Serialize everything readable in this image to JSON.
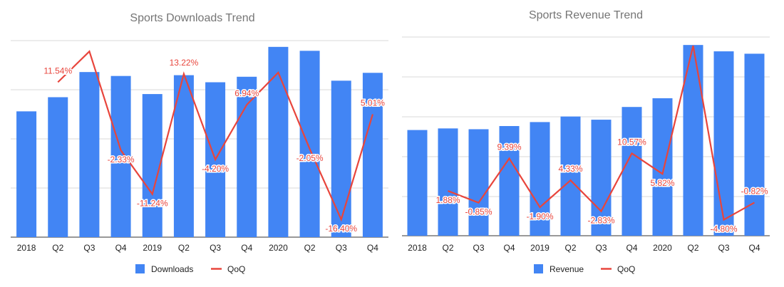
{
  "chart_data": [
    {
      "type": "bar",
      "title": "Sports Downloads Trend",
      "categories": [
        "2018",
        "Q2",
        "Q3",
        "Q4",
        "2019",
        "Q2",
        "Q3",
        "Q4",
        "2020",
        "Q2",
        "Q3",
        "Q4"
      ],
      "series": [
        {
          "name": "Downloads",
          "kind": "bar",
          "color": "#4285f4",
          "values": [
            160,
            178,
            210,
            205,
            182,
            206,
            197,
            204,
            242,
            237,
            199,
            209
          ]
        },
        {
          "name": "QoQ",
          "kind": "line",
          "color": "#e8453c",
          "values": [
            null,
            11.54,
            17.8,
            -2.33,
            -11.24,
            13.22,
            -4.2,
            6.94,
            13.5,
            -2.05,
            -16.4,
            5.01
          ],
          "labels": [
            "",
            "11.54%",
            "",
            "-2.33%",
            "-11.24%",
            "13.22%",
            "-4.20%",
            "6.94%",
            "",
            "-2.05%",
            "-16.40%",
            "5.01%"
          ]
        }
      ],
      "legend_position": "bottom",
      "grid": true
    },
    {
      "type": "bar",
      "title": "Sports Revenue Trend",
      "categories": [
        "2018",
        "Q2",
        "Q3",
        "Q4",
        "2019",
        "Q2",
        "Q3",
        "Q4",
        "2020",
        "Q2",
        "Q3",
        "Q4"
      ],
      "series": [
        {
          "name": "Revenue",
          "kind": "bar",
          "color": "#4285f4",
          "values": [
            133,
            135,
            134,
            138,
            143,
            150,
            146,
            162,
            173,
            240,
            232,
            229
          ]
        },
        {
          "name": "QoQ",
          "kind": "line",
          "color": "#e8453c",
          "values": [
            null,
            1.88,
            -0.85,
            9.39,
            -1.9,
            4.33,
            -2.83,
            10.57,
            5.82,
            35.5,
            -4.8,
            -0.82
          ],
          "labels": [
            "",
            "1.88%",
            "-0.85%",
            "9.39%",
            "-1.90%",
            "4.33%",
            "-2.83%",
            "10.57%",
            "5.82%",
            "",
            "-4.80%",
            "-0.82%"
          ]
        }
      ],
      "legend_position": "bottom",
      "grid": true
    }
  ]
}
